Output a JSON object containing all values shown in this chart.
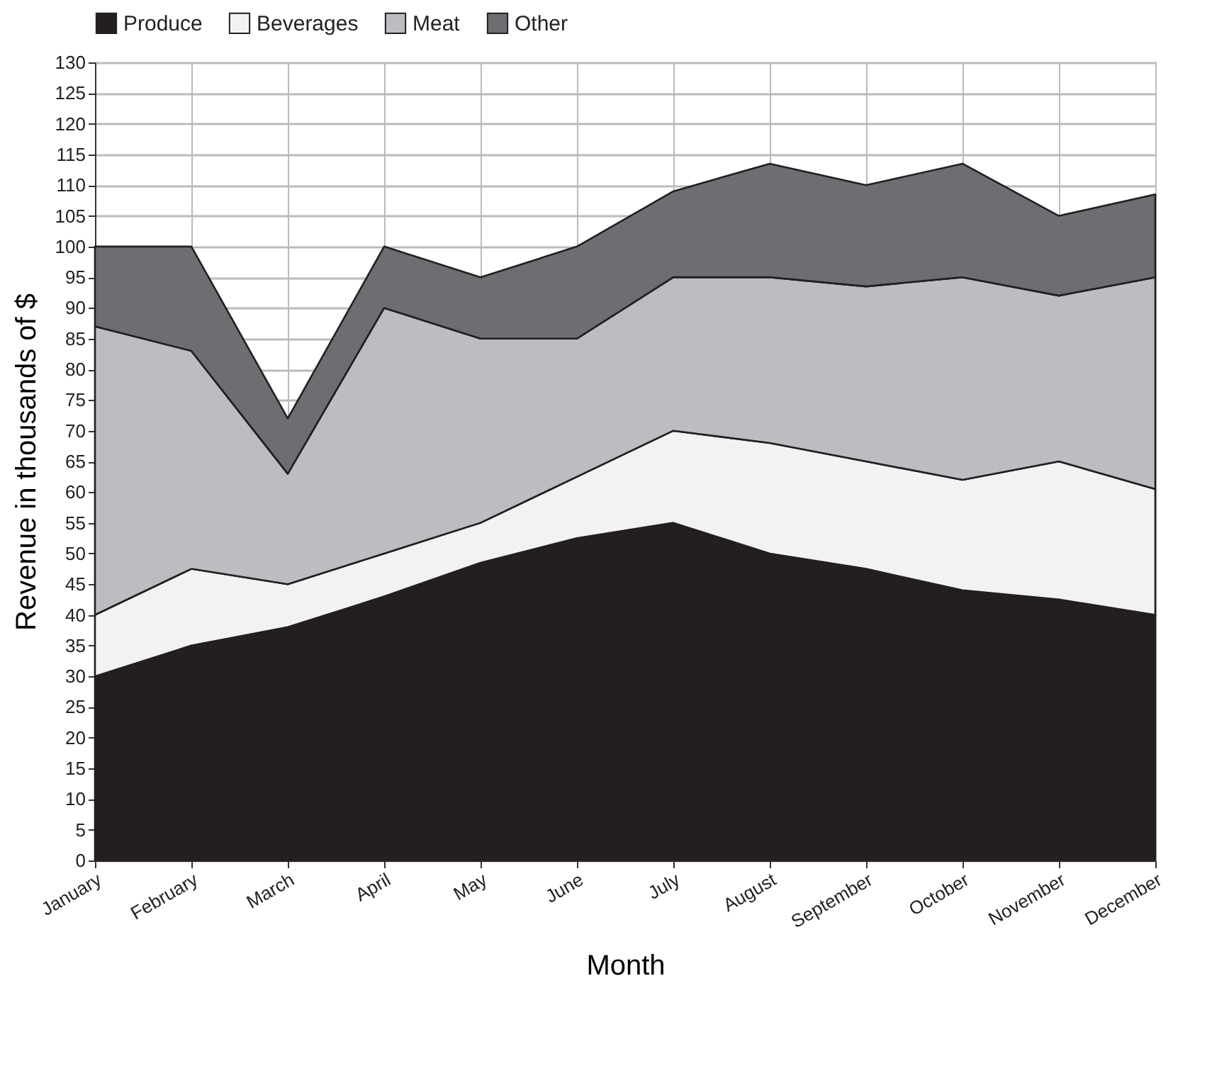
{
  "chart_data": {
    "type": "area",
    "stacked": true,
    "xlabel": "Month",
    "ylabel": "Revenue in thousands of $",
    "categories": [
      "January",
      "February",
      "March",
      "April",
      "May",
      "June",
      "July",
      "August",
      "September",
      "October",
      "November",
      "December"
    ],
    "series": [
      {
        "name": "Produce",
        "color": "#231f20",
        "values": [
          30,
          35,
          38,
          43,
          48.5,
          52.5,
          55,
          50,
          47.5,
          44,
          42.5,
          40
        ]
      },
      {
        "name": "Beverages",
        "color": "#f2f2f4",
        "values": [
          10,
          12.5,
          7,
          7,
          6.5,
          10,
          15,
          18,
          17.5,
          18,
          22.5,
          20.5
        ]
      },
      {
        "name": "Meat",
        "color": "#bcbdc0",
        "values": [
          47,
          35.5,
          18,
          40,
          30,
          22.5,
          25,
          27,
          28.5,
          33,
          27,
          34.5
        ]
      },
      {
        "name": "Other",
        "color": "#6d6e71",
        "values": [
          13,
          17,
          9,
          10,
          10,
          15,
          14,
          18.5,
          16.5,
          18.5,
          13,
          13.5
        ]
      }
    ],
    "ylim": [
      0,
      130
    ],
    "yticks": [
      0,
      5,
      10,
      15,
      20,
      25,
      30,
      35,
      40,
      45,
      50,
      55,
      60,
      65,
      70,
      75,
      80,
      85,
      90,
      95,
      100,
      105,
      110,
      115,
      120,
      125,
      130
    ],
    "grid": true,
    "legend": "top"
  }
}
